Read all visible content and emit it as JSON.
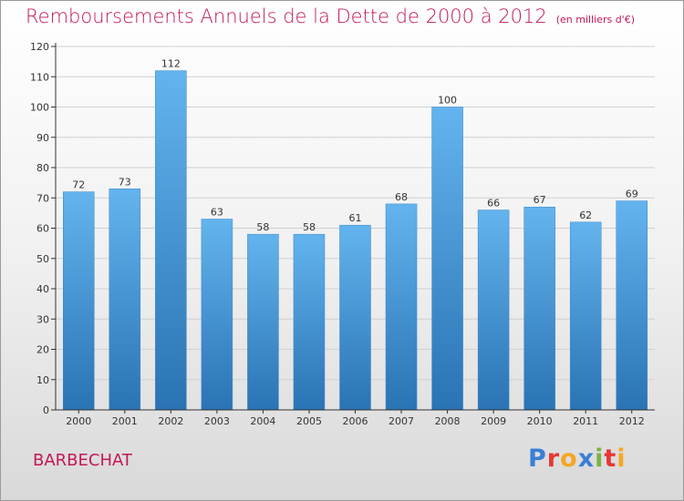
{
  "title": "Remboursements Annuels de la Dette de 2000 à 2012",
  "subtitle": "(en milliers d'€)",
  "commune": "BARBECHAT",
  "logo": {
    "text": "Proxiti",
    "letter_colors": [
      "#3a7fd5",
      "#e53935",
      "#f5a623",
      "#3a7fd5",
      "#7cb342",
      "#e53935",
      "#f5a623"
    ]
  },
  "colors": {
    "title": "#c2185b",
    "bar_top": "#63b4ee",
    "bar_bottom": "#2a73b4",
    "axis": "#333333",
    "grid": "#d0d0d0"
  },
  "chart_data": {
    "type": "bar",
    "title": "Remboursements Annuels de la Dette de 2000 à 2012",
    "subtitle": "(en milliers d'€)",
    "categories": [
      "2000",
      "2001",
      "2002",
      "2003",
      "2004",
      "2005",
      "2006",
      "2007",
      "2008",
      "2009",
      "2010",
      "2011",
      "2012"
    ],
    "values": [
      72,
      73,
      112,
      63,
      58,
      58,
      61,
      68,
      100,
      66,
      67,
      62,
      69
    ],
    "ylim": [
      0,
      120
    ],
    "yticks": [
      0,
      10,
      20,
      30,
      40,
      50,
      60,
      70,
      80,
      90,
      100,
      110,
      120
    ],
    "grid": true,
    "data_labels": true
  }
}
